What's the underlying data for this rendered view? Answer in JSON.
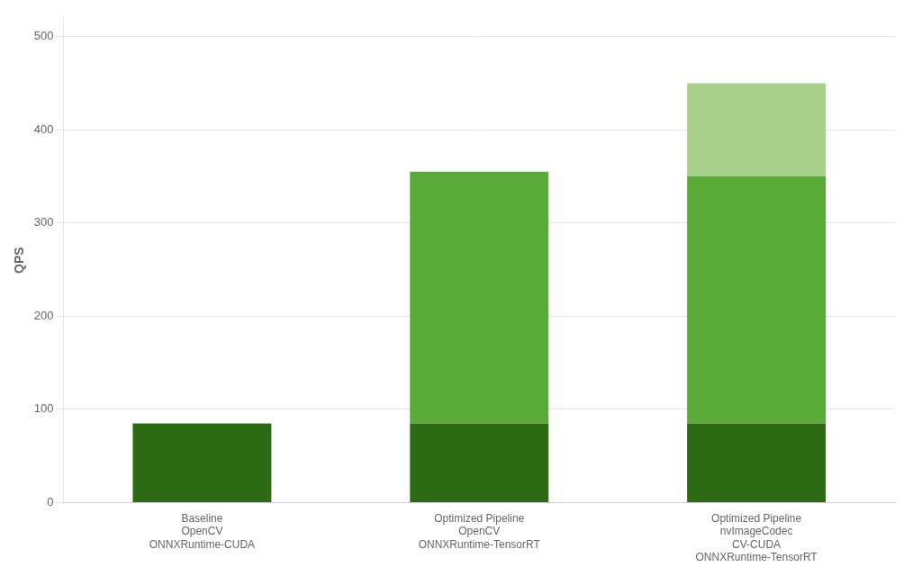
{
  "chart_data": {
    "type": "bar",
    "stacked": true,
    "ylabel": "QPS",
    "categories": [
      [
        "Baseline",
        "OpenCV",
        "ONNXRuntime-CUDA"
      ],
      [
        "Optimized Pipeline",
        "OpenCV",
        "ONNXRuntime-TensorRT"
      ],
      [
        "Optimized Pipeline",
        "nvImageCodec",
        "CV-CUDA",
        "ONNXRuntime-TensorRT"
      ]
    ],
    "series": [
      {
        "color": "#2d6a14",
        "values": [
          85,
          85,
          85
        ]
      },
      {
        "color": "#5aaa3a",
        "values": [
          0,
          270,
          265
        ]
      },
      {
        "color": "#a8d08a",
        "values": [
          0,
          0,
          100
        ]
      }
    ],
    "ylim": [
      0,
      520
    ],
    "yticks": [
      0,
      100,
      200,
      300,
      400,
      500
    ],
    "grid": true
  }
}
